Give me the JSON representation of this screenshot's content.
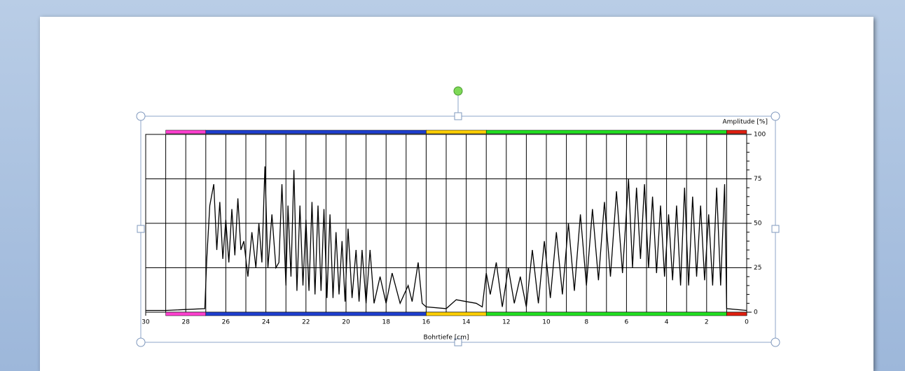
{
  "chart_data": {
    "type": "line",
    "y_label": "Amplitude [%]",
    "x_label": "Bohrtiefe [cm]",
    "xlim": [
      30,
      0
    ],
    "xticks": [
      30,
      28,
      26,
      24,
      22,
      20,
      18,
      16,
      14,
      12,
      10,
      8,
      6,
      4,
      2,
      0
    ],
    "ylim": [
      0,
      100
    ],
    "yticks": [
      0,
      25,
      50,
      75,
      100
    ],
    "grid": true,
    "bands": [
      {
        "from": 29,
        "to": 27,
        "color": "#ff40d0"
      },
      {
        "from": 27,
        "to": 16,
        "color": "#1f3fcf"
      },
      {
        "from": 16,
        "to": 13,
        "color": "#ffd000"
      },
      {
        "from": 13,
        "to": 1,
        "color": "#22e022"
      },
      {
        "from": 1,
        "to": 0,
        "color": "#e02010"
      }
    ],
    "color": "#000000",
    "x": [
      30,
      29,
      27.05,
      26.95,
      26.8,
      26.6,
      26.45,
      26.3,
      26.15,
      26.0,
      25.85,
      25.7,
      25.55,
      25.4,
      25.25,
      25.1,
      24.9,
      24.7,
      24.5,
      24.35,
      24.2,
      24.05,
      23.9,
      23.7,
      23.5,
      23.35,
      23.2,
      23.0,
      22.9,
      22.75,
      22.6,
      22.45,
      22.3,
      22.15,
      22.0,
      21.85,
      21.7,
      21.55,
      21.4,
      21.25,
      21.1,
      20.95,
      20.8,
      20.65,
      20.5,
      20.35,
      20.2,
      20.05,
      19.9,
      19.7,
      19.5,
      19.35,
      19.2,
      19.0,
      18.8,
      18.6,
      18.3,
      18.0,
      17.7,
      17.3,
      16.9,
      16.7,
      16.4,
      16.2,
      16.0,
      15.0,
      14.5,
      14.0,
      13.5,
      13.2,
      13.0,
      12.8,
      12.5,
      12.2,
      11.9,
      11.6,
      11.3,
      11.0,
      10.7,
      10.4,
      10.1,
      9.8,
      9.5,
      9.2,
      8.9,
      8.6,
      8.3,
      8.0,
      7.7,
      7.4,
      7.1,
      6.8,
      6.5,
      6.2,
      5.9,
      5.7,
      5.5,
      5.3,
      5.1,
      4.9,
      4.7,
      4.5,
      4.3,
      4.1,
      3.9,
      3.7,
      3.5,
      3.3,
      3.1,
      2.9,
      2.7,
      2.5,
      2.3,
      2.1,
      1.9,
      1.7,
      1.5,
      1.3,
      1.1,
      1.0,
      0
    ],
    "values": [
      1,
      1,
      2,
      30,
      60,
      72,
      35,
      62,
      30,
      52,
      28,
      58,
      32,
      64,
      35,
      40,
      20,
      45,
      25,
      50,
      28,
      82,
      25,
      55,
      25,
      28,
      72,
      15,
      60,
      20,
      80,
      12,
      60,
      15,
      52,
      12,
      62,
      10,
      60,
      12,
      58,
      8,
      55,
      8,
      45,
      10,
      40,
      6,
      47,
      8,
      35,
      6,
      35,
      5,
      35,
      5,
      20,
      5,
      22,
      5,
      15,
      6,
      28,
      5,
      3,
      2,
      7,
      6,
      5,
      3,
      22,
      10,
      28,
      3,
      25,
      5,
      20,
      3,
      35,
      5,
      40,
      8,
      45,
      10,
      50,
      12,
      55,
      15,
      58,
      18,
      62,
      20,
      68,
      22,
      75,
      25,
      70,
      30,
      72,
      25,
      65,
      22,
      60,
      20,
      55,
      18,
      60,
      15,
      70,
      15,
      65,
      20,
      60,
      18,
      55,
      15,
      70,
      15,
      72,
      2,
      1
    ]
  }
}
